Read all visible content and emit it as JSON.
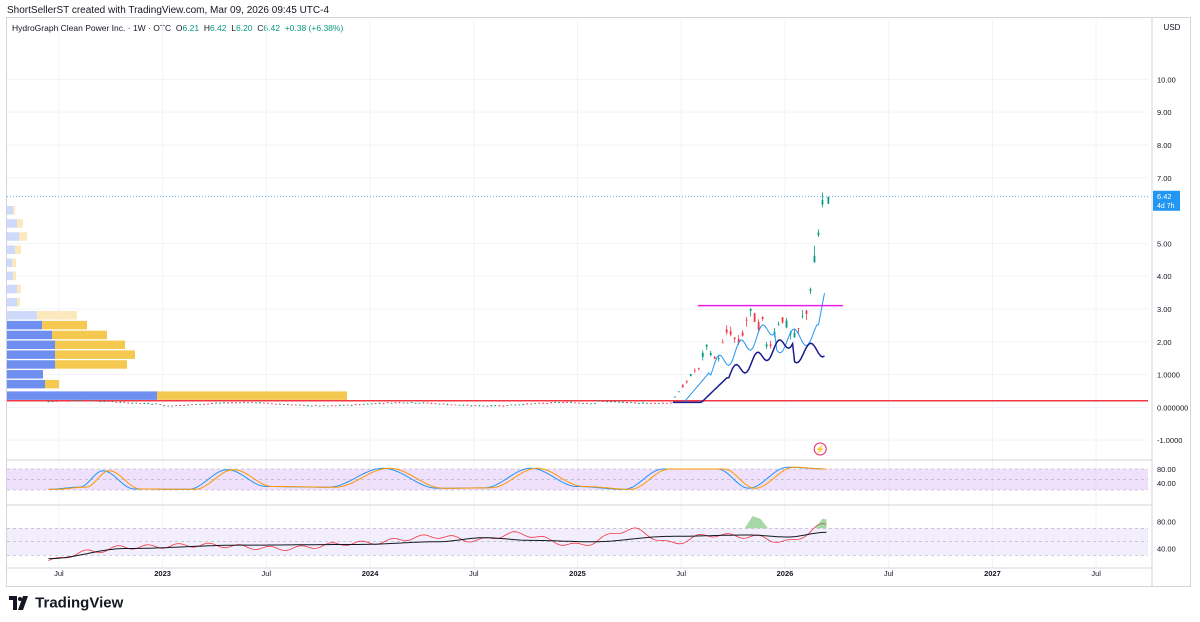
{
  "header": {
    "attribution": "ShortSellerST created with TradingView.com, Mar 09, 2026 09:45 UTC-4"
  },
  "legend": {
    "symbol": "HydroGraph Clean Power Inc. · 1W · OTC",
    "o_label": "O",
    "o": "6.21",
    "h_label": "H",
    "h": "6.42",
    "l_label": "L",
    "l": "6.20",
    "c_label": "C",
    "c": "6.42",
    "change": "+0.38 (+6.38%)"
  },
  "price_axis": {
    "currency": "USD",
    "ticks": [
      "10.00",
      "9.00",
      "8.00",
      "7.00",
      "5.00",
      "4.00",
      "3.00",
      "2.00",
      "1.0000",
      "0.000000",
      "-1.0000"
    ],
    "last_price": "6.42",
    "countdown": "4d 7h"
  },
  "osc1_axis": {
    "ticks": [
      "80.00",
      "40.00"
    ]
  },
  "osc2_axis": {
    "ticks": [
      "80.00",
      "40.00"
    ]
  },
  "time_axis": {
    "labels": [
      "Jul",
      "2023",
      "Jul",
      "2024",
      "Jul",
      "2025",
      "Jul",
      "2026",
      "Jul",
      "2027",
      "Jul"
    ]
  },
  "colors": {
    "up": "#089981",
    "down": "#f23645",
    "support": "#f23645",
    "breakout": "#e91ee9",
    "ma_fast": "#2196f3",
    "ma_slow": "#1a1a8c",
    "vp_blue": "#6e8ff0",
    "vp_yellow": "#f5c94f",
    "osc_fill": "#e1c6f7",
    "rsi": "#f23645",
    "rsi_ma": "#131722",
    "last_price": "#2196f3"
  },
  "chart_data": [
    {
      "type": "candlestick",
      "title": "HydroGraph Clean Power Inc. · 1W · OTC",
      "xlabel": "",
      "ylabel": "USD",
      "ylim": [
        -1.3,
        11.2
      ],
      "x_range": [
        "2022-04",
        "2027-10"
      ],
      "price_scale": "linear",
      "last": {
        "open": 6.21,
        "high": 6.42,
        "low": 6.2,
        "close": 6.42,
        "change": 0.38,
        "change_pct": 6.38
      },
      "segments": [
        {
          "from": "2022-07",
          "to": "2025-06",
          "price": 0.1,
          "note": "flat base near 0.1"
        },
        {
          "from": "2025-06",
          "to": "2025-07",
          "price_start": 0.15,
          "price_end": 1.3
        },
        {
          "from": "2025-07",
          "to": "2025-11",
          "price_start": 1.3,
          "price_end": 3.0
        },
        {
          "from": "2025-11",
          "to": "2026-02",
          "price_start": 2.2,
          "price_end": 2.7
        },
        {
          "from": "2026-02",
          "to": "2026-03",
          "price_start": 2.8,
          "price_end": 6.42
        }
      ],
      "lines": [
        {
          "name": "support",
          "price": 0.2
        },
        {
          "name": "breakout",
          "price": 3.1,
          "from": "2025-08",
          "to": "2026-04"
        }
      ]
    },
    {
      "type": "area",
      "name": "stochastic oscillator",
      "ylim": [
        0,
        100
      ],
      "bands": [
        80,
        20
      ],
      "points": [
        [
          0.0,
          22
        ],
        [
          0.04,
          28
        ],
        [
          0.07,
          75
        ],
        [
          0.11,
          23
        ],
        [
          0.18,
          22
        ],
        [
          0.23,
          78
        ],
        [
          0.28,
          30
        ],
        [
          0.36,
          28
        ],
        [
          0.43,
          82
        ],
        [
          0.5,
          25
        ],
        [
          0.56,
          26
        ],
        [
          0.62,
          82
        ],
        [
          0.68,
          30
        ],
        [
          0.74,
          22
        ],
        [
          0.79,
          80
        ],
        [
          0.86,
          80
        ],
        [
          0.9,
          25
        ],
        [
          0.95,
          85
        ],
        [
          1.0,
          80
        ]
      ]
    },
    {
      "type": "line",
      "name": "RSI",
      "ylim": [
        20,
        100
      ],
      "bands": [
        70,
        30
      ],
      "series": [
        {
          "name": "",
          "points": [
            [
              0.0,
              22
            ],
            [
              0.05,
              35
            ],
            [
              0.1,
              42
            ],
            [
              0.2,
              45
            ],
            [
              0.3,
              40
            ],
            [
              0.4,
              48
            ],
            [
              0.5,
              58
            ],
            [
              0.55,
              52
            ],
            [
              0.6,
              62
            ],
            [
              0.68,
              45
            ],
            [
              0.75,
              68
            ],
            [
              0.8,
              48
            ],
            [
              0.85,
              60
            ],
            [
              0.9,
              58
            ],
            [
              0.95,
              50
            ],
            [
              1.0,
              75
            ]
          ]
        },
        {
          "name": "",
          "points": [
            [
              0.0,
              25
            ],
            [
              0.1,
              40
            ],
            [
              0.25,
              45
            ],
            [
              0.4,
              46
            ],
            [
              0.5,
              50
            ],
            [
              0.56,
              56
            ],
            [
              0.62,
              52
            ],
            [
              0.7,
              50
            ],
            [
              0.8,
              58
            ],
            [
              0.9,
              60
            ],
            [
              0.95,
              57
            ],
            [
              1.0,
              64
            ]
          ]
        }
      ]
    }
  ],
  "footer": {
    "brand": "TradingView"
  }
}
